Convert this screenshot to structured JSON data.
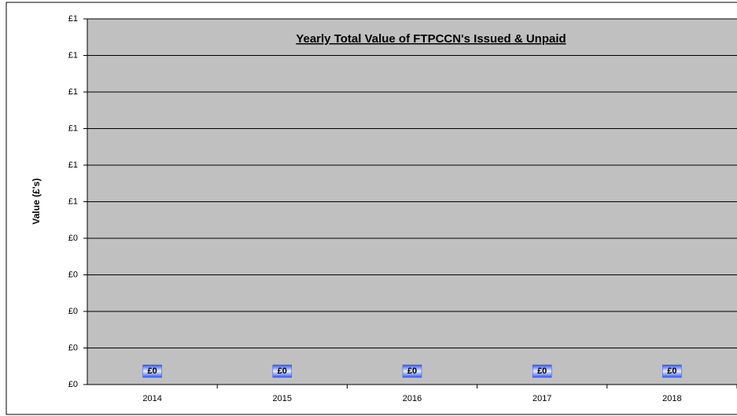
{
  "chart_data": {
    "type": "bar",
    "title": "Yearly  Total Value of FTPCCN's Issued & Unpaid",
    "y_label": "Value (£'s)",
    "categories": [
      "2014",
      "2015",
      "2016",
      "2017",
      "2018"
    ],
    "values": [
      0,
      0,
      0,
      0,
      0
    ],
    "value_labels": [
      "£0",
      "£0",
      "£0",
      "£0",
      "£0"
    ],
    "color": "#3366ff",
    "ylim": [
      0,
      1
    ],
    "yticks": [
      {
        "value": 0,
        "label": "£0"
      },
      {
        "value": 0.1,
        "label": "£0"
      },
      {
        "value": 0.2,
        "label": "£0"
      },
      {
        "value": 0.3,
        "label": "£0"
      },
      {
        "value": 0.4,
        "label": "£0"
      },
      {
        "value": 0.5,
        "label": "£1"
      },
      {
        "value": 0.6,
        "label": "£1"
      },
      {
        "value": 0.7,
        "label": "£1"
      },
      {
        "value": 0.8,
        "label": "£1"
      },
      {
        "value": 0.9,
        "label": "£1"
      },
      {
        "value": 1,
        "label": "£1"
      }
    ],
    "grid": true
  }
}
